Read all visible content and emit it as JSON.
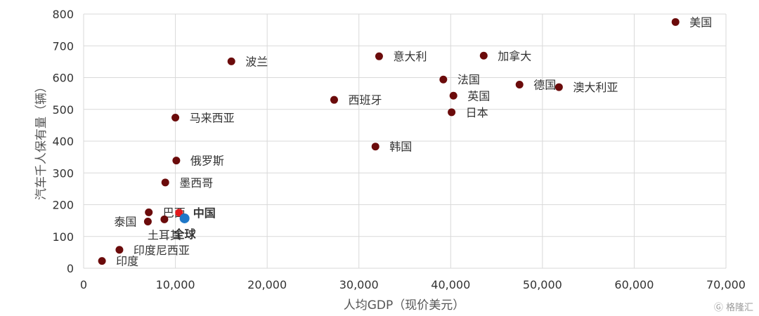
{
  "chart_data": {
    "type": "scatter",
    "title": "",
    "xlabel": "人均GDP（现价美元）",
    "ylabel": "汽车千人保有量（辆）",
    "xlim": [
      0,
      70000
    ],
    "ylim": [
      0,
      800
    ],
    "x_ticks": [
      "0",
      "10,000",
      "20,000",
      "30,000",
      "40,000",
      "50,000",
      "60,000",
      "70,000"
    ],
    "y_ticks": [
      "0",
      "100",
      "200",
      "300",
      "400",
      "500",
      "600",
      "700",
      "800"
    ],
    "grid": true,
    "colors": {
      "default": "#6b0b0b",
      "china": "#e31a1c",
      "world": "#1f78c8"
    },
    "points": [
      {
        "label": "美国",
        "x": 64500,
        "y": 775,
        "label_pos": "right"
      },
      {
        "label": "波兰",
        "x": 16100,
        "y": 651,
        "label_pos": "right"
      },
      {
        "label": "意大利",
        "x": 32200,
        "y": 667,
        "label_pos": "right"
      },
      {
        "label": "加拿大",
        "x": 43600,
        "y": 669,
        "label_pos": "right"
      },
      {
        "label": "法国",
        "x": 39200,
        "y": 594,
        "label_pos": "right"
      },
      {
        "label": "德国",
        "x": 47500,
        "y": 578,
        "label_pos": "right"
      },
      {
        "label": "澳大利亚",
        "x": 51800,
        "y": 570,
        "label_pos": "right"
      },
      {
        "label": "西班牙",
        "x": 27300,
        "y": 530,
        "label_pos": "right"
      },
      {
        "label": "英国",
        "x": 40300,
        "y": 543,
        "label_pos": "right"
      },
      {
        "label": "日本",
        "x": 40100,
        "y": 491,
        "label_pos": "right"
      },
      {
        "label": "马来西亚",
        "x": 10000,
        "y": 474,
        "label_pos": "right"
      },
      {
        "label": "韩国",
        "x": 31800,
        "y": 383,
        "label_pos": "right"
      },
      {
        "label": "俄罗斯",
        "x": 10100,
        "y": 339,
        "label_pos": "right"
      },
      {
        "label": "墨西哥",
        "x": 8900,
        "y": 270,
        "label_pos": "right"
      },
      {
        "label": "巴西",
        "x": 7100,
        "y": 176,
        "label_pos": "right"
      },
      {
        "label": "泰国",
        "x": 7000,
        "y": 147,
        "label_pos": "left"
      },
      {
        "label": "土耳其",
        "x": 8800,
        "y": 154,
        "label_pos": "below"
      },
      {
        "label": "印度尼西亚",
        "x": 3900,
        "y": 58,
        "label_pos": "right"
      },
      {
        "label": "印度",
        "x": 2000,
        "y": 23,
        "label_pos": "right"
      },
      {
        "label": "中国",
        "x": 10400,
        "y": 175,
        "label_pos": "right",
        "style": "china"
      },
      {
        "label": "全球",
        "x": 11000,
        "y": 157,
        "label_pos": "below",
        "style": "world"
      }
    ]
  },
  "watermark": "格隆汇"
}
